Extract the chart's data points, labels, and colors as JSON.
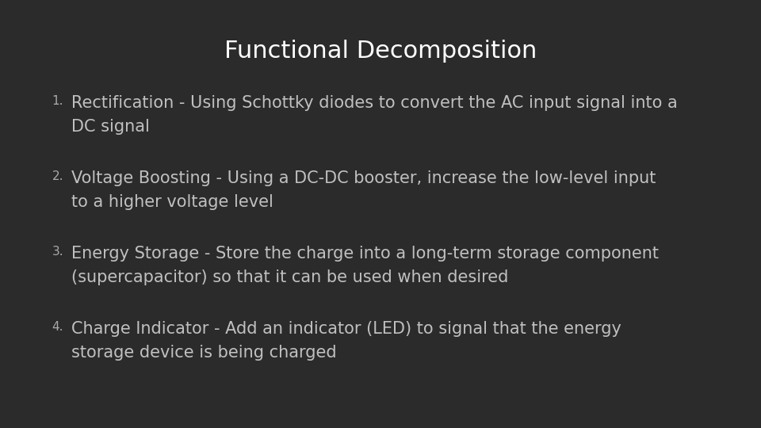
{
  "title": "Functional Decomposition",
  "background_color": "#2b2b2b",
  "title_color": "#ffffff",
  "text_color": "#c0c0c0",
  "number_color": "#aaaaaa",
  "title_fontsize": 22,
  "item_fontsize": 15,
  "number_fontsize": 11,
  "items": [
    {
      "number": "1.",
      "line1": "Rectification - Using Schottky diodes to convert the AC input signal into a",
      "line2": "DC signal"
    },
    {
      "number": "2.",
      "line1": "Voltage Boosting - Using a DC-DC booster, increase the low-level input",
      "line2": "to a higher voltage level"
    },
    {
      "number": "3.",
      "line1": "Energy Storage - Store the charge into a long-term storage component",
      "line2": "(supercapacitor) so that it can be used when desired"
    },
    {
      "number": "4.",
      "line1": "Charge Indicator - Add an indicator (LED) to signal that the energy",
      "line2": "storage device is being charged"
    }
  ]
}
